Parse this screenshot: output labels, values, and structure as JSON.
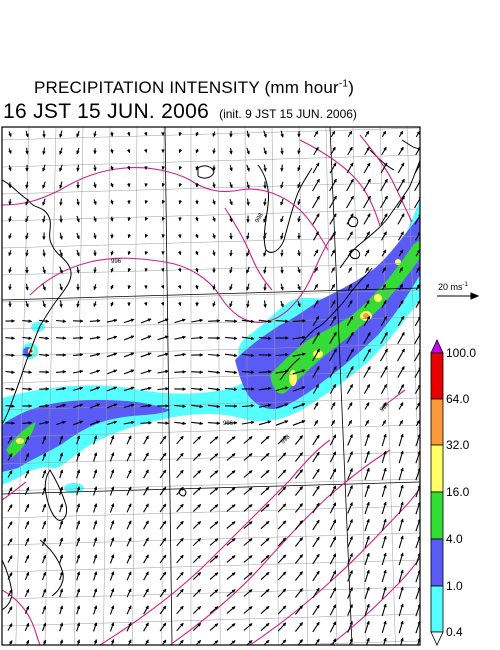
{
  "title": {
    "main": "PRECIPITATION INTENSITY (mm hour",
    "exponent": "-1",
    "close": ")"
  },
  "valid_time": "16 JST 15 JUN. 2006",
  "init_time": "(init. 9 JST 15 JUN. 2006)",
  "wind_scale": {
    "label": "20 ms",
    "exponent": "-1",
    "value_ms": 20
  },
  "isobar_labels": [
    "996",
    "998",
    "996",
    "998",
    "996"
  ],
  "legend": {
    "values": [
      "100.0",
      "64.0",
      "32.0",
      "16.0",
      "4.0",
      "1.0",
      "0.4"
    ],
    "colors": [
      "#cc00ff",
      "#e60000",
      "#f99a3c",
      "#ffff66",
      "#33dd33",
      "#5a5af5",
      "#55ffff",
      "#ffffff"
    ]
  },
  "colors": {
    "coastline": "#000000",
    "isobar": "#d0208c",
    "grid": "#9a9a9a",
    "arrow": "#000000"
  }
}
